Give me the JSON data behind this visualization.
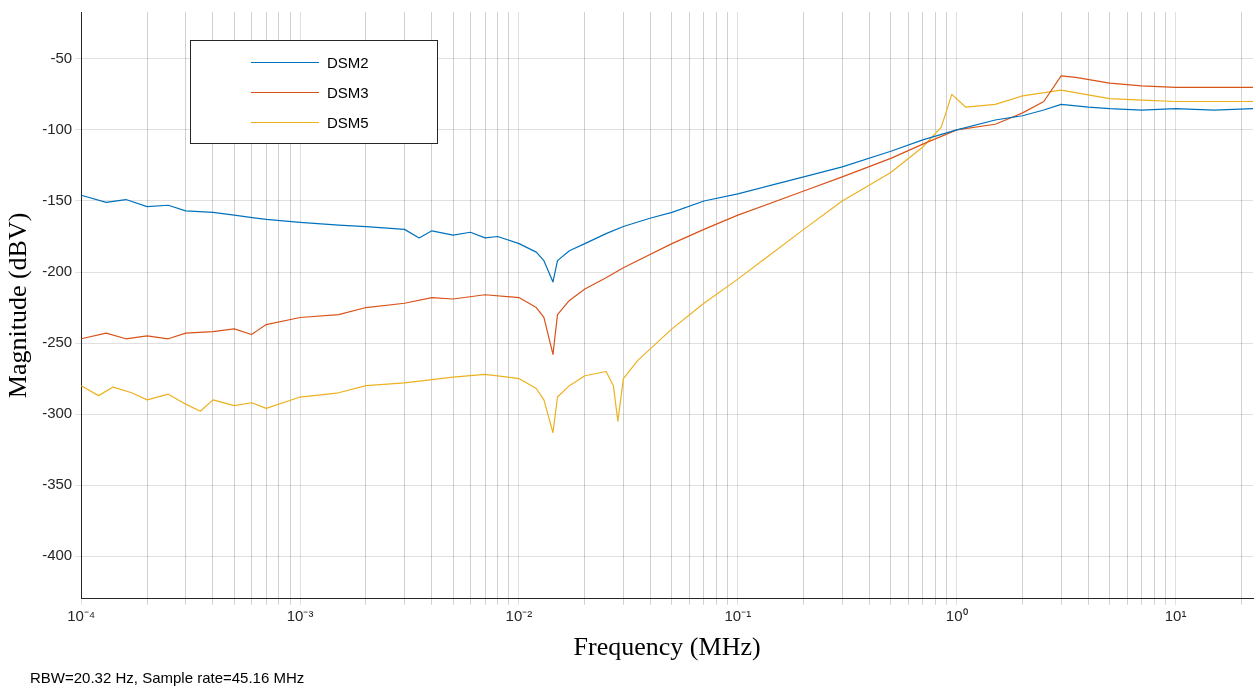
{
  "chart_data": {
    "type": "line",
    "xlabel": "Frequency (MHz)",
    "ylabel": "Magnitude (dBV)",
    "log": "x",
    "grid": true,
    "legend": "top left",
    "marker": "none",
    "line_style": "solid",
    "annotations": [
      "RBW=20.32 Hz, Sample rate=45.16 MHz"
    ],
    "xlim": [
      0.0001,
      22.58
    ],
    "ylim": [
      -430,
      -17
    ],
    "xticks": [
      {
        "value": 0.0001,
        "label": "10⁻⁴"
      },
      {
        "value": 0.0002,
        "label": null
      },
      {
        "value": 0.0003,
        "label": null
      },
      {
        "value": 0.0004,
        "label": null
      },
      {
        "value": 0.0005,
        "label": null
      },
      {
        "value": 0.0006,
        "label": null
      },
      {
        "value": 0.0007,
        "label": null
      },
      {
        "value": 0.0008,
        "label": null
      },
      {
        "value": 0.0009,
        "label": null
      },
      {
        "value": 0.001,
        "label": "10⁻³"
      },
      {
        "value": 0.002,
        "label": null
      },
      {
        "value": 0.003,
        "label": null
      },
      {
        "value": 0.004,
        "label": null
      },
      {
        "value": 0.005,
        "label": null
      },
      {
        "value": 0.006,
        "label": null
      },
      {
        "value": 0.007,
        "label": null
      },
      {
        "value": 0.008,
        "label": null
      },
      {
        "value": 0.009,
        "label": null
      },
      {
        "value": 0.01,
        "label": "10⁻²"
      },
      {
        "value": 0.02,
        "label": null
      },
      {
        "value": 0.03,
        "label": null
      },
      {
        "value": 0.04,
        "label": null
      },
      {
        "value": 0.05,
        "label": null
      },
      {
        "value": 0.06,
        "label": null
      },
      {
        "value": 0.07,
        "label": null
      },
      {
        "value": 0.08,
        "label": null
      },
      {
        "value": 0.09,
        "label": null
      },
      {
        "value": 0.1,
        "label": "10⁻¹"
      },
      {
        "value": 0.2,
        "label": null
      },
      {
        "value": 0.3,
        "label": null
      },
      {
        "value": 0.4,
        "label": null
      },
      {
        "value": 0.5,
        "label": null
      },
      {
        "value": 0.6,
        "label": null
      },
      {
        "value": 0.7,
        "label": null
      },
      {
        "value": 0.8,
        "label": null
      },
      {
        "value": 0.9,
        "label": null
      },
      {
        "value": 1,
        "label": "10⁰"
      },
      {
        "value": 2,
        "label": null
      },
      {
        "value": 3,
        "label": null
      },
      {
        "value": 4,
        "label": null
      },
      {
        "value": 5,
        "label": null
      },
      {
        "value": 6,
        "label": null
      },
      {
        "value": 7,
        "label": null
      },
      {
        "value": 8,
        "label": null
      },
      {
        "value": 9,
        "label": null
      },
      {
        "value": 10,
        "label": "10¹"
      },
      {
        "value": 20,
        "label": null
      }
    ],
    "yticks": [
      -400,
      -350,
      -300,
      -250,
      -200,
      -150,
      -100,
      -50
    ],
    "series": [
      {
        "name": "DSM2",
        "color": "#0072bd",
        "x": [
          0.0001,
          0.00013,
          0.00016,
          0.0002,
          0.00025,
          0.0003,
          0.0004,
          0.0005,
          0.0007,
          0.001,
          0.0015,
          0.002,
          0.003,
          0.0035,
          0.004,
          0.005,
          0.006,
          0.007,
          0.008,
          0.01,
          0.012,
          0.013,
          0.0143,
          0.015,
          0.017,
          0.02,
          0.025,
          0.03,
          0.04,
          0.05,
          0.07,
          0.1,
          0.15,
          0.2,
          0.3,
          0.5,
          0.7,
          1,
          1.5,
          2,
          2.5,
          3,
          4,
          5,
          7,
          10,
          15,
          22.58
        ],
        "values": [
          -146,
          -151,
          -149,
          -154,
          -153,
          -157,
          -158,
          -160,
          -163,
          -165,
          -167,
          -168,
          -170,
          -176,
          -171,
          -174,
          -172,
          -176,
          -175,
          -180,
          -186,
          -192,
          -207,
          -192,
          -185,
          -180,
          -173,
          -168,
          -162,
          -158,
          -150,
          -145,
          -138,
          -133,
          -126,
          -115,
          -107,
          -100,
          -93,
          -90,
          -86,
          -82,
          -84,
          -85,
          -86,
          -85,
          -86,
          -85
        ]
      },
      {
        "name": "DSM3",
        "color": "#d95319",
        "x": [
          0.0001,
          0.00013,
          0.00016,
          0.0002,
          0.00025,
          0.0003,
          0.0004,
          0.0005,
          0.0006,
          0.0007,
          0.001,
          0.0015,
          0.002,
          0.003,
          0.004,
          0.005,
          0.007,
          0.01,
          0.012,
          0.013,
          0.0143,
          0.015,
          0.017,
          0.02,
          0.025,
          0.03,
          0.05,
          0.07,
          0.1,
          0.2,
          0.3,
          0.5,
          0.7,
          1,
          1.5,
          2,
          2.5,
          3,
          3.5,
          5,
          7,
          10,
          15,
          22.58
        ],
        "values": [
          -247,
          -243,
          -247,
          -245,
          -247,
          -243,
          -242,
          -240,
          -244,
          -237,
          -232,
          -230,
          -225,
          -222,
          -218,
          -219,
          -216,
          -218,
          -225,
          -232,
          -258,
          -230,
          -220,
          -212,
          -204,
          -197,
          -180,
          -170,
          -160,
          -143,
          -133,
          -120,
          -110,
          -100,
          -96,
          -88,
          -80,
          -62,
          -63,
          -67,
          -69,
          -70,
          -70,
          -70
        ]
      },
      {
        "name": "DSM5",
        "color": "#edb120",
        "x": [
          0.0001,
          0.00012,
          0.00014,
          0.00017,
          0.0002,
          0.00025,
          0.0003,
          0.00035,
          0.0004,
          0.0005,
          0.0006,
          0.0007,
          0.001,
          0.0015,
          0.002,
          0.003,
          0.005,
          0.007,
          0.01,
          0.012,
          0.013,
          0.0143,
          0.015,
          0.017,
          0.02,
          0.025,
          0.027,
          0.0283,
          0.03,
          0.035,
          0.05,
          0.07,
          0.1,
          0.2,
          0.3,
          0.5,
          0.7,
          0.85,
          0.95,
          1.1,
          1.5,
          2,
          3,
          5,
          7,
          10,
          15,
          22.58
        ],
        "values": [
          -280,
          -287,
          -281,
          -285,
          -290,
          -286,
          -293,
          -298,
          -290,
          -294,
          -292,
          -296,
          -288,
          -285,
          -280,
          -278,
          -274,
          -272,
          -275,
          -282,
          -290,
          -313,
          -288,
          -280,
          -273,
          -270,
          -280,
          -305,
          -275,
          -262,
          -240,
          -222,
          -205,
          -170,
          -150,
          -130,
          -112,
          -98,
          -75,
          -84,
          -82,
          -76,
          -72,
          -78,
          -79,
          -80,
          -80,
          -80
        ]
      }
    ]
  }
}
